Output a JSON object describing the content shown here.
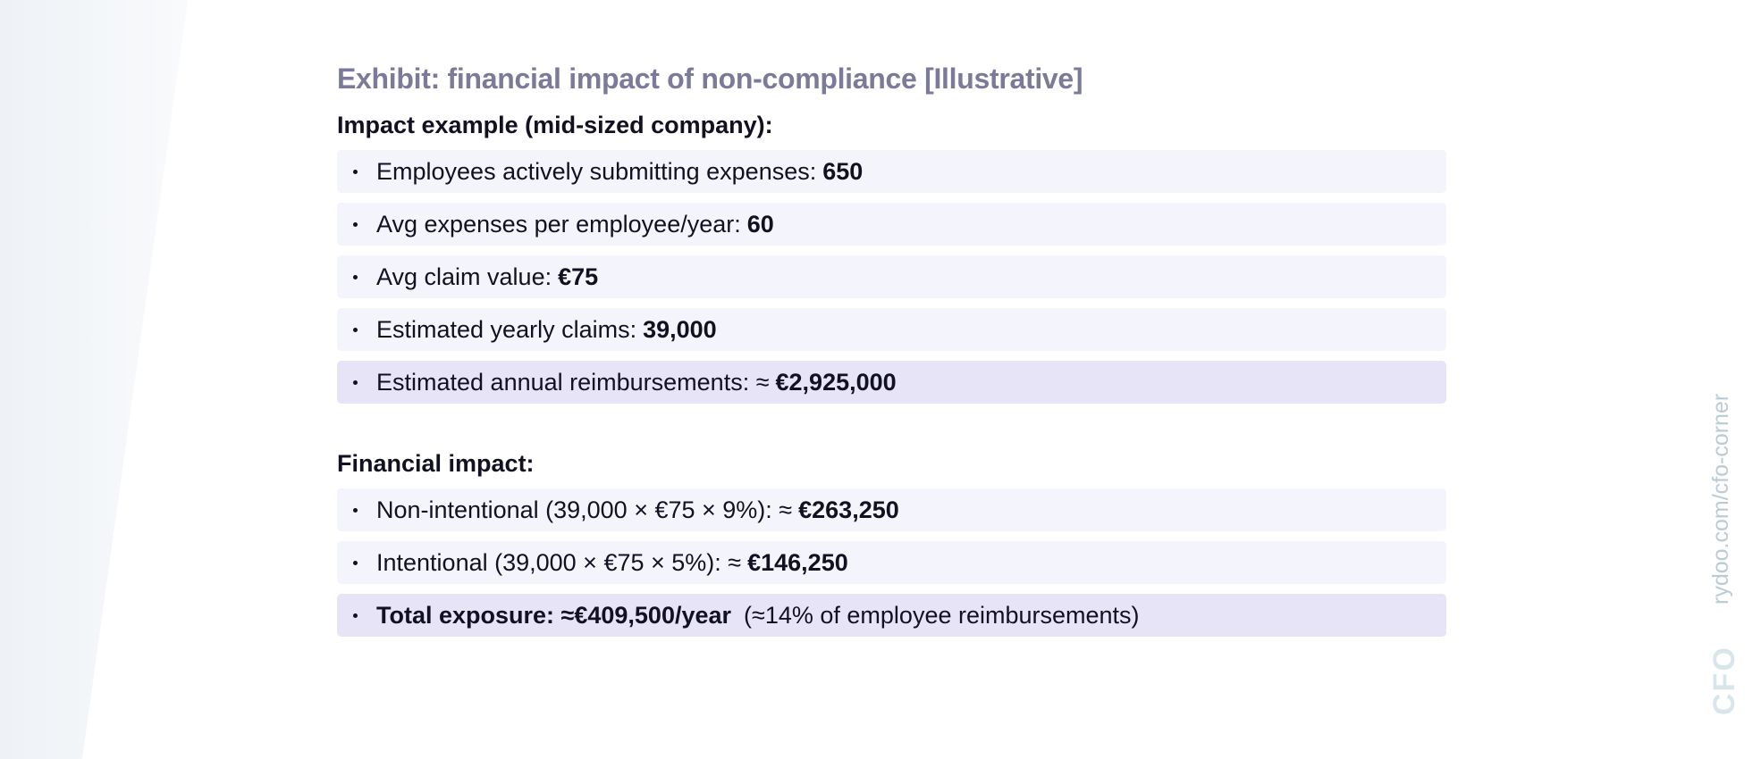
{
  "header": {
    "title": "Exhibit: financial impact of non-compliance [Illustrative]"
  },
  "sections": [
    {
      "heading": "Impact example (mid-sized company):",
      "items": [
        {
          "label": "Employees actively submitting expenses:",
          "value": "650"
        },
        {
          "label": "Avg expenses per employee/year:",
          "value": "60"
        },
        {
          "label": "Avg claim value:",
          "value": "€75"
        },
        {
          "label": "Estimated yearly claims:",
          "value": "39,000"
        },
        {
          "label": "Estimated annual reimbursements: ≈",
          "value": "€2,925,000",
          "highlight": true
        }
      ]
    },
    {
      "heading": "Financial impact:",
      "items": [
        {
          "label": "Non-intentional (39,000 × €75 × 9%): ≈",
          "value": "€263,250"
        },
        {
          "label": "Intentional (39,000 × €75 × 5%): ≈",
          "value": "€146,250"
        },
        {
          "value": "Total exposure: ≈€409,500/year",
          "note": "(≈14% of employee reimbursements)",
          "highlight": true
        }
      ]
    }
  ],
  "watermark": {
    "url": "rydoo.com/cfo-corner",
    "logo": "CFO"
  }
}
